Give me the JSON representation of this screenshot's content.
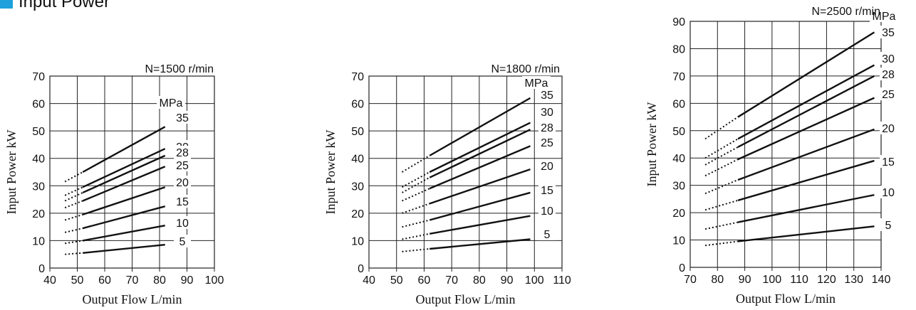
{
  "header": {
    "title": "Input Power",
    "marker_color": "#1ea0dc"
  },
  "chart_data": [
    {
      "type": "line",
      "title": "N=1500 r/min",
      "xlabel": "Output Flow  L/min",
      "ylabel": "Input Power  kW",
      "xlim": [
        40,
        100
      ],
      "ylim": [
        0,
        70
      ],
      "xticks": [
        40,
        50,
        60,
        70,
        80,
        90,
        100
      ],
      "yticks": [
        0,
        10,
        20,
        30,
        40,
        50,
        60,
        70
      ],
      "grid": true,
      "unit_label": "MPa",
      "dotted_segment_x": [
        45.5,
        52
      ],
      "solid_segment_x": [
        52,
        82
      ],
      "series": [
        {
          "name": "35",
          "x": [
            45.5,
            52,
            82
          ],
          "y": [
            31.5,
            35,
            51.5
          ]
        },
        {
          "name": "30",
          "x": [
            45.5,
            52,
            82
          ],
          "y": [
            26.5,
            29.5,
            43.5
          ]
        },
        {
          "name": "28",
          "x": [
            45.5,
            52,
            82
          ],
          "y": [
            24.5,
            27.5,
            41
          ]
        },
        {
          "name": "25",
          "x": [
            45.5,
            52,
            82
          ],
          "y": [
            22,
            24.5,
            37
          ]
        },
        {
          "name": "20",
          "x": [
            45.5,
            52,
            82
          ],
          "y": [
            17.5,
            19.5,
            29.5
          ]
        },
        {
          "name": "15",
          "x": [
            45.5,
            52,
            82
          ],
          "y": [
            13,
            14.5,
            22.5
          ]
        },
        {
          "name": "10",
          "x": [
            45.5,
            52,
            82
          ],
          "y": [
            9,
            10,
            15.5
          ]
        },
        {
          "name": "5",
          "x": [
            45.5,
            52,
            82
          ],
          "y": [
            5,
            5.5,
            8.5
          ]
        }
      ]
    },
    {
      "type": "line",
      "title": "N=1800 r/min",
      "xlabel": "Output Flow  L/min",
      "ylabel": "Input Power  kW",
      "xlim": [
        40,
        110
      ],
      "ylim": [
        0,
        70
      ],
      "xticks": [
        40,
        50,
        60,
        70,
        80,
        90,
        100,
        110
      ],
      "yticks": [
        0,
        10,
        20,
        30,
        40,
        50,
        60,
        70
      ],
      "grid": true,
      "unit_label": "MPa",
      "dotted_segment_x": [
        52,
        62
      ],
      "solid_segment_x": [
        62,
        98.5
      ],
      "series": [
        {
          "name": "35",
          "x": [
            52,
            62,
            98.5
          ],
          "y": [
            35,
            41,
            62
          ]
        },
        {
          "name": "30",
          "x": [
            52,
            62,
            98.5
          ],
          "y": [
            29.5,
            35,
            53
          ]
        },
        {
          "name": "28",
          "x": [
            52,
            62,
            98.5
          ],
          "y": [
            27.5,
            33,
            50.5
          ]
        },
        {
          "name": "25",
          "x": [
            52,
            62,
            98.5
          ],
          "y": [
            24.5,
            29,
            44.5
          ]
        },
        {
          "name": "20",
          "x": [
            52,
            62,
            98.5
          ],
          "y": [
            20,
            23.5,
            36
          ]
        },
        {
          "name": "15",
          "x": [
            52,
            62,
            98.5
          ],
          "y": [
            15,
            17.5,
            27.5
          ]
        },
        {
          "name": "10",
          "x": [
            52,
            62,
            98.5
          ],
          "y": [
            10.5,
            12.5,
            19
          ]
        },
        {
          "name": "5",
          "x": [
            52,
            62,
            98.5
          ],
          "y": [
            6,
            7,
            10.5
          ]
        }
      ]
    },
    {
      "type": "line",
      "title": "N=2500 r/min",
      "xlabel": "Output Flow  L/min",
      "ylabel": "Input Power  kW",
      "xlim": [
        70,
        140
      ],
      "ylim": [
        0,
        90
      ],
      "xticks": [
        70,
        80,
        90,
        100,
        110,
        120,
        130,
        140
      ],
      "yticks": [
        0,
        10,
        20,
        30,
        40,
        50,
        60,
        70,
        80,
        90
      ],
      "grid": true,
      "unit_label": "MPa",
      "dotted_segment_x": [
        75.5,
        87.5
      ],
      "solid_segment_x": [
        87.5,
        137.5
      ],
      "series": [
        {
          "name": "35",
          "x": [
            75.5,
            87.5,
            137.5
          ],
          "y": [
            47,
            55,
            86
          ]
        },
        {
          "name": "30",
          "x": [
            75.5,
            87.5,
            137.5
          ],
          "y": [
            40,
            47,
            74
          ]
        },
        {
          "name": "28",
          "x": [
            75.5,
            87.5,
            137.5
          ],
          "y": [
            37.5,
            44,
            70
          ]
        },
        {
          "name": "25",
          "x": [
            75.5,
            87.5,
            137.5
          ],
          "y": [
            33.5,
            39.5,
            62
          ]
        },
        {
          "name": "20",
          "x": [
            75.5,
            87.5,
            137.5
          ],
          "y": [
            27,
            32,
            50.5
          ]
        },
        {
          "name": "15",
          "x": [
            75.5,
            87.5,
            137.5
          ],
          "y": [
            21,
            24.5,
            39
          ]
        },
        {
          "name": "10",
          "x": [
            75.5,
            87.5,
            137.5
          ],
          "y": [
            14,
            16.5,
            26.5
          ]
        },
        {
          "name": "5",
          "x": [
            75.5,
            87.5,
            137.5
          ],
          "y": [
            8,
            9.5,
            15
          ]
        }
      ]
    }
  ]
}
